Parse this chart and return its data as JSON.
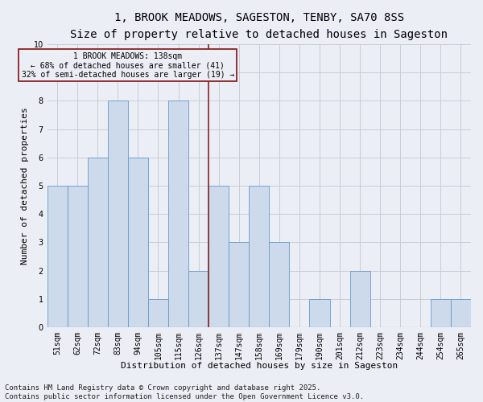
{
  "title": "1, BROOK MEADOWS, SAGESTON, TENBY, SA70 8SS",
  "subtitle": "Size of property relative to detached houses in Sageston",
  "xlabel": "Distribution of detached houses by size in Sageston",
  "ylabel": "Number of detached properties",
  "bin_labels": [
    "51sqm",
    "62sqm",
    "72sqm",
    "83sqm",
    "94sqm",
    "105sqm",
    "115sqm",
    "126sqm",
    "137sqm",
    "147sqm",
    "158sqm",
    "169sqm",
    "179sqm",
    "190sqm",
    "201sqm",
    "212sqm",
    "223sqm",
    "234sqm",
    "244sqm",
    "254sqm",
    "265sqm"
  ],
  "bar_values": [
    5,
    5,
    6,
    8,
    6,
    1,
    8,
    2,
    5,
    3,
    5,
    3,
    0,
    1,
    0,
    2,
    0,
    0,
    0,
    1,
    1
  ],
  "bar_color": "#ccdaeb",
  "bar_edge_color": "#6699cc",
  "grid_color": "#c8ccd8",
  "background_color": "#eceef5",
  "vline_x_index": 7.5,
  "vline_color": "#882222",
  "annotation_text": "1 BROOK MEADOWS: 138sqm\n← 68% of detached houses are smaller (41)\n32% of semi-detached houses are larger (19) →",
  "annotation_box_color": "#882222",
  "annotation_text_color": "#000000",
  "footnote": "Contains HM Land Registry data © Crown copyright and database right 2025.\nContains public sector information licensed under the Open Government Licence v3.0.",
  "ylim": [
    0,
    10
  ],
  "yticks": [
    0,
    1,
    2,
    3,
    4,
    5,
    6,
    7,
    8,
    9,
    10
  ],
  "title_fontsize": 10,
  "subtitle_fontsize": 9,
  "axis_label_fontsize": 8,
  "tick_fontsize": 7,
  "annotation_fontsize": 7,
  "footnote_fontsize": 6.5
}
